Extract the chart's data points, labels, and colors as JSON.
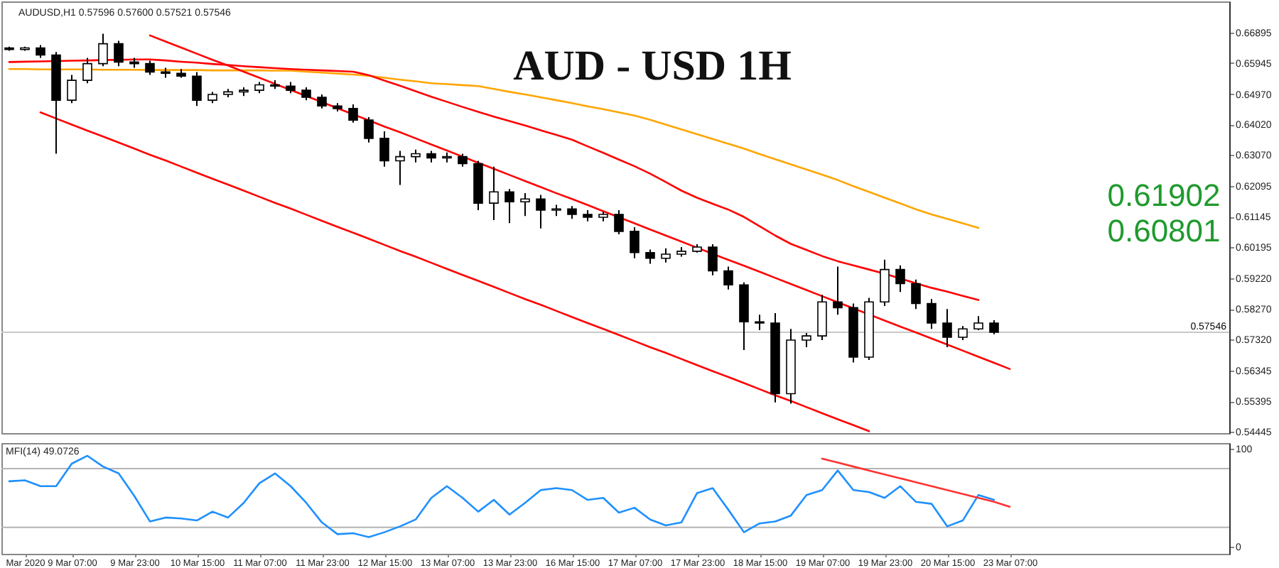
{
  "chart_data": [
    {
      "type": "candlestick",
      "title": "AUD - USD 1H",
      "annotations": [
        "AUDUSD,H1 0.57596 0.57600 0.57521 0.57546",
        "0.61902",
        "0.60801"
      ],
      "categories": [
        null,
        null,
        null,
        null,
        null,
        null,
        null,
        null,
        null,
        null,
        null,
        null,
        null,
        null,
        null,
        null,
        null,
        null,
        null,
        null,
        null,
        null,
        null,
        null,
        null,
        null,
        null,
        null,
        null,
        null,
        null,
        null,
        null,
        null,
        null,
        null,
        null,
        null,
        null,
        null,
        null,
        null,
        null,
        null,
        null,
        null,
        null,
        null,
        null,
        null,
        null,
        null,
        null,
        null,
        null,
        null,
        null,
        null,
        null,
        null,
        null,
        null,
        null,
        null,
        null
      ],
      "ohlc": [
        [
          0.6641,
          0.6645,
          0.6632,
          0.6636
        ],
        [
          0.6636,
          0.6645,
          0.6632,
          0.6641
        ],
        [
          0.6641,
          0.665,
          0.661,
          0.6619
        ],
        [
          0.6619,
          0.6628,
          0.6311,
          0.6478
        ],
        [
          0.6478,
          0.6557,
          0.6469,
          0.654
        ],
        [
          0.654,
          0.661,
          0.6531,
          0.6592
        ],
        [
          0.6592,
          0.6685,
          0.6584,
          0.6654
        ],
        [
          0.6654,
          0.6663,
          0.6584,
          0.6597
        ],
        [
          0.6597,
          0.661,
          0.6579,
          0.6592
        ],
        [
          0.6592,
          0.6601,
          0.6557,
          0.6566
        ],
        [
          0.6566,
          0.6579,
          0.6548,
          0.6562
        ],
        [
          0.6562,
          0.6575,
          0.6548,
          0.6553
        ],
        [
          0.6553,
          0.6566,
          0.646,
          0.6478
        ],
        [
          0.6478,
          0.6504,
          0.6469,
          0.6496
        ],
        [
          0.6496,
          0.6513,
          0.6487,
          0.6504
        ],
        [
          0.6504,
          0.6518,
          0.6491,
          0.6509
        ],
        [
          0.6509,
          0.6535,
          0.65,
          0.6526
        ],
        [
          0.6526,
          0.654,
          0.6513,
          0.6522
        ],
        [
          0.6522,
          0.6535,
          0.65,
          0.6509
        ],
        [
          0.6509,
          0.6518,
          0.6478,
          0.6487
        ],
        [
          0.6487,
          0.6496,
          0.6452,
          0.646
        ],
        [
          0.646,
          0.6469,
          0.6443,
          0.6452
        ],
        [
          0.6452,
          0.6465,
          0.6408,
          0.6416
        ],
        [
          0.6416,
          0.6425,
          0.6346,
          0.6359
        ],
        [
          0.6359,
          0.6381,
          0.6271,
          0.6289
        ],
        [
          0.6289,
          0.632,
          0.6214,
          0.6302
        ],
        [
          0.6302,
          0.6324,
          0.6284,
          0.6311
        ],
        [
          0.6311,
          0.632,
          0.6284,
          0.6298
        ],
        [
          0.6298,
          0.6315,
          0.6284,
          0.6302
        ],
        [
          0.6302,
          0.6311,
          0.6271,
          0.628
        ],
        [
          0.628,
          0.6289,
          0.6135,
          0.6157
        ],
        [
          0.6157,
          0.6271,
          0.6104,
          0.6192
        ],
        [
          0.6192,
          0.6201,
          0.6095,
          0.6161
        ],
        [
          0.6161,
          0.6188,
          0.6117,
          0.617
        ],
        [
          0.617,
          0.6183,
          0.6078,
          0.6135
        ],
        [
          0.6135,
          0.6152,
          0.6117,
          0.6139
        ],
        [
          0.6139,
          0.6148,
          0.6108,
          0.6122
        ],
        [
          0.6122,
          0.6135,
          0.61,
          0.6113
        ],
        [
          0.6113,
          0.613,
          0.61,
          0.6122
        ],
        [
          0.6122,
          0.6135,
          0.606,
          0.6069
        ],
        [
          0.6069,
          0.6082,
          0.5985,
          0.6003
        ],
        [
          0.6003,
          0.6012,
          0.5968,
          0.5985
        ],
        [
          0.5985,
          0.6016,
          0.5972,
          0.5998
        ],
        [
          0.5998,
          0.602,
          0.599,
          0.6007
        ],
        [
          0.6007,
          0.6029,
          0.6003,
          0.602
        ],
        [
          0.602,
          0.6029,
          0.5932,
          0.5946
        ],
        [
          0.5946,
          0.5959,
          0.5888,
          0.5902
        ],
        [
          0.5902,
          0.591,
          0.5699,
          0.5787
        ],
        [
          0.5787,
          0.5809,
          0.5761,
          0.5783
        ],
        [
          0.5783,
          0.5814,
          0.5536,
          0.5563
        ],
        [
          0.5563,
          0.5765,
          0.5532,
          0.573
        ],
        [
          0.573,
          0.5752,
          0.5708,
          0.5743
        ],
        [
          0.5743,
          0.5871,
          0.573,
          0.5849
        ],
        [
          0.5849,
          0.5959,
          0.5809,
          0.5831
        ],
        [
          0.5831,
          0.5844,
          0.566,
          0.5677
        ],
        [
          0.5677,
          0.5862,
          0.5668,
          0.5849
        ],
        [
          0.5849,
          0.5981,
          0.5836,
          0.595
        ],
        [
          0.595,
          0.5963,
          0.588,
          0.5906
        ],
        [
          0.5906,
          0.5919,
          0.5827,
          0.5844
        ],
        [
          0.5844,
          0.5858,
          0.5765,
          0.5783
        ],
        [
          0.5783,
          0.5827,
          0.5708,
          0.5739
        ],
        [
          0.5739,
          0.5774,
          0.573,
          0.5765
        ],
        [
          0.5765,
          0.5805,
          0.5761,
          0.5783
        ],
        [
          0.5783,
          0.5792,
          0.5748,
          0.57546
        ],
        null
      ],
      "series": [
        {
          "type": "line",
          "color": "#ffa500",
          "values": [
            0.6575,
            0.6575,
            0.6574,
            0.6574,
            0.6574,
            0.6574,
            0.6573,
            0.6573,
            0.6573,
            0.6572,
            0.6572,
            0.6572,
            0.6572,
            0.6571,
            0.6571,
            0.6571,
            0.6571,
            0.657,
            0.657,
            0.6567,
            0.6564,
            0.6561,
            0.6558,
            0.6554,
            0.6548,
            0.6542,
            0.6537,
            0.6531,
            0.6528,
            0.6525,
            0.6522,
            0.6513,
            0.6504,
            0.6496,
            0.6487,
            0.6478,
            0.6469,
            0.6459,
            0.645,
            0.644,
            0.643,
            0.6417,
            0.6402,
            0.6387,
            0.6372,
            0.6357,
            0.6342,
            0.6327,
            0.631,
            0.6294,
            0.6278,
            0.6262,
            0.6246,
            0.6229,
            0.621,
            0.6192,
            0.6174,
            0.6156,
            0.6138,
            0.6122,
            0.6108,
            0.6094,
            0.608,
            null,
            null
          ]
        },
        {
          "type": "line",
          "color": "#ff0000",
          "values": [
            0.6597,
            0.6598,
            0.6599,
            0.66,
            0.6601,
            0.6602,
            0.6603,
            0.6604,
            0.6605,
            0.6605,
            0.6602,
            0.6598,
            0.6595,
            0.6591,
            0.6588,
            0.6584,
            0.6581,
            0.6578,
            0.6575,
            0.6573,
            0.6571,
            0.6569,
            0.6567,
            0.6556,
            0.6539,
            0.6523,
            0.6506,
            0.6489,
            0.6473,
            0.6457,
            0.6442,
            0.6427,
            0.6413,
            0.6399,
            0.6384,
            0.637,
            0.6355,
            0.6334,
            0.6314,
            0.6293,
            0.6272,
            0.6249,
            0.6223,
            0.6196,
            0.6174,
            0.6155,
            0.6137,
            0.6114,
            0.6085,
            0.6056,
            0.603,
            0.6011,
            0.5992,
            0.5976,
            0.5963,
            0.595,
            0.5937,
            0.5922,
            0.5907,
            0.5893,
            0.5881,
            0.5868,
            0.5855,
            null,
            null
          ]
        },
        {
          "type": "line",
          "color": "#ff0000",
          "values": [
            null,
            null,
            null,
            null,
            null,
            null,
            null,
            null,
            null,
            0.668,
            0.6661,
            0.6642,
            0.6623,
            0.6604,
            0.6586,
            0.6567,
            0.6548,
            0.6529,
            0.651,
            0.6491,
            0.6472,
            0.6453,
            0.6434,
            0.6415,
            0.6396,
            0.6378,
            0.6359,
            0.634,
            0.6321,
            0.6302,
            0.6283,
            0.6264,
            0.6245,
            0.6226,
            0.6207,
            0.6188,
            0.617,
            0.6151,
            0.6132,
            0.6113,
            0.6094,
            0.6075,
            0.6056,
            0.6037,
            0.6018,
            0.5999,
            0.598,
            0.5962,
            0.5943,
            0.5924,
            0.5905,
            0.5886,
            0.5867,
            0.5848,
            0.5829,
            0.581,
            0.5791,
            0.5772,
            0.5754,
            0.5735,
            0.5716,
            0.5697,
            0.5678,
            0.5659,
            0.564
          ]
        },
        {
          "type": "line",
          "color": "#ff0000",
          "values": [
            null,
            null,
            0.644,
            0.6421,
            0.6402,
            0.6383,
            0.6365,
            0.6346,
            0.6327,
            0.6308,
            0.629,
            0.6271,
            0.6252,
            0.6233,
            0.6215,
            0.6196,
            0.6177,
            0.6158,
            0.614,
            0.6121,
            0.6102,
            0.6083,
            0.6065,
            0.6046,
            0.6027,
            0.6008,
            0.599,
            0.5971,
            0.5952,
            0.5933,
            0.5915,
            0.5896,
            0.5877,
            0.5858,
            0.584,
            0.5821,
            0.5802,
            0.5783,
            0.5765,
            0.5746,
            0.5727,
            0.5708,
            0.569,
            0.5671,
            0.5652,
            0.5633,
            0.5615,
            0.5596,
            0.5577,
            0.5558,
            0.554,
            0.5521,
            0.5502,
            0.5483,
            0.5465,
            0.5446,
            null,
            null,
            null,
            null,
            null,
            null,
            null,
            null,
            null
          ]
        }
      ],
      "ref_lines": [
        {
          "axis": "y",
          "value": 0.57546,
          "label": "0.57546",
          "color": "#c8c8c8"
        }
      ],
      "ylim": [
        0.544,
        0.6786
      ],
      "yticks": [
        0.54445,
        0.55395,
        0.56345,
        {
          "value": 0.5732,
          "label": "0.57320"
        },
        {
          "value": 0.5827,
          "label": "0.58270"
        },
        {
          "value": 0.5922,
          "label": "0.59220"
        },
        0.60195,
        0.61145,
        0.62095,
        {
          "value": 0.6307,
          "label": "0.63070"
        },
        {
          "value": 0.6402,
          "label": "0.64020"
        },
        {
          "value": 0.6497,
          "label": "0.64970"
        },
        0.65945,
        0.66895
      ],
      "tick_labels": "y",
      "grid": false
    },
    {
      "type": "line",
      "title": "MFI(14) 49.0726",
      "categories": [
        null,
        "Mar 2020",
        null,
        null,
        "9 Mar 07:00",
        null,
        null,
        null,
        "9 Mar 23:00",
        null,
        null,
        null,
        "10 Mar 15:00",
        null,
        null,
        null,
        "11 Mar 07:00",
        null,
        null,
        null,
        "11 Mar 23:00",
        null,
        null,
        null,
        "12 Mar 15:00",
        null,
        null,
        null,
        "13 Mar 07:00",
        null,
        null,
        null,
        "13 Mar 23:00",
        null,
        null,
        null,
        "16 Mar 15:00",
        null,
        null,
        null,
        "17 Mar 07:00",
        null,
        null,
        null,
        "17 Mar 23:00",
        null,
        null,
        null,
        "18 Mar 15:00",
        null,
        null,
        null,
        "19 Mar 07:00",
        null,
        null,
        null,
        "19 Mar 23:00",
        null,
        null,
        null,
        "20 Mar 15:00",
        null,
        null,
        null,
        "23 Mar 07:00"
      ],
      "series": [
        {
          "color": "#1e90ff",
          "values": [
            67,
            68,
            62,
            62,
            85,
            93,
            82,
            75,
            52,
            26,
            30,
            29,
            27,
            36,
            30,
            45,
            65,
            75,
            62,
            45,
            25,
            13,
            14,
            10,
            15,
            21,
            28,
            50,
            62,
            50,
            36,
            48,
            33,
            45,
            58,
            60,
            58,
            48,
            50,
            35,
            40,
            28,
            22,
            25,
            55,
            60,
            38,
            15,
            24,
            26,
            32,
            53,
            58,
            78,
            58,
            56,
            50,
            62,
            46,
            44,
            21,
            27,
            53,
            48,
            null
          ]
        },
        {
          "color": "#ff3333",
          "values": [
            null,
            null,
            null,
            null,
            null,
            null,
            null,
            null,
            null,
            null,
            null,
            null,
            null,
            null,
            null,
            null,
            null,
            null,
            null,
            null,
            null,
            null,
            null,
            null,
            null,
            null,
            null,
            null,
            null,
            null,
            null,
            null,
            null,
            null,
            null,
            null,
            null,
            null,
            null,
            null,
            null,
            null,
            null,
            null,
            null,
            null,
            null,
            null,
            null,
            null,
            null,
            null,
            90,
            86,
            82,
            78,
            74,
            70,
            66,
            62,
            58,
            54,
            50,
            46,
            41
          ]
        }
      ],
      "ref_lines": [
        {
          "axis": "y",
          "value": 80,
          "color": "#b4b4b4"
        },
        {
          "axis": "y",
          "value": 20,
          "color": "#b4b4b4"
        }
      ],
      "ylim": [
        -7,
        106
      ],
      "yticks": [
        0,
        100
      ],
      "grid": false
    }
  ]
}
